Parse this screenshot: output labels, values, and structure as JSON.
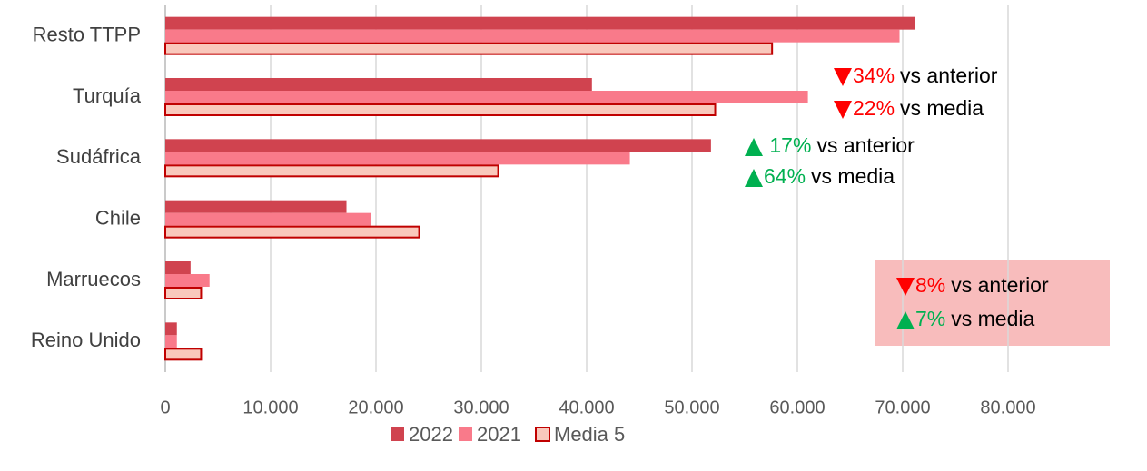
{
  "chart_data": {
    "type": "bar",
    "orientation": "horizontal",
    "categories": [
      "Resto TTPP",
      "Turquía",
      "Sudáfrica",
      "Chile",
      "Marruecos",
      "Reino Unido"
    ],
    "series": [
      {
        "name": "2022",
        "color": "#d0434f",
        "values": [
          71200,
          40500,
          51800,
          17200,
          2400,
          1100
        ]
      },
      {
        "name": "2021",
        "color": "#f97a8a",
        "values": [
          69700,
          61000,
          44100,
          19500,
          4200,
          1100
        ]
      },
      {
        "name": "Media 5",
        "color": "#f9c8bc",
        "edge_color": "#c00000",
        "values": [
          57600,
          52200,
          31600,
          24100,
          3400,
          3400
        ]
      }
    ],
    "xlim": [
      0,
      80000
    ],
    "xticks": [
      0,
      {
        "value": 10000,
        "label": "10.000"
      },
      {
        "value": 20000,
        "label": "20.000"
      },
      {
        "value": 30000,
        "label": "30.000"
      },
      {
        "value": 40000,
        "label": "40.000"
      },
      {
        "value": 50000,
        "label": "50.000"
      },
      {
        "value": 60000,
        "label": "60.000"
      },
      {
        "value": 70000,
        "label": "70.000"
      },
      {
        "value": 80000,
        "label": "80.000"
      }
    ],
    "grid": true,
    "legend": "bottom",
    "annotations": [
      {
        "direction": "down",
        "pct": "34%",
        "text": "vs anterior",
        "color": "#ff0000"
      },
      {
        "direction": "down",
        "pct": "22%",
        "text": "vs media",
        "color": "#ff0000"
      },
      {
        "direction": "up",
        "pct": " 17%",
        "text": "vs anterior",
        "color": "#00b050"
      },
      {
        "direction": "up",
        "pct": "64%",
        "text": "vs media",
        "color": "#00b050"
      },
      {
        "direction": "down",
        "pct": "8%",
        "text": "vs anterior",
        "color": "#ff0000"
      },
      {
        "direction": "up",
        "pct": "7%",
        "text": "vs media",
        "color": "#00b050"
      }
    ]
  }
}
